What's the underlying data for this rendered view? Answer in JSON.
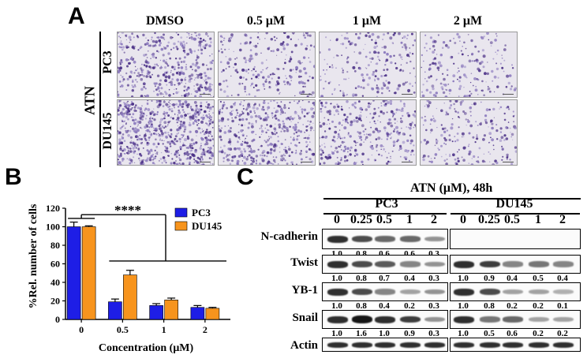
{
  "panel_a": {
    "letter": "A",
    "treatment_label": "ATN",
    "columns": [
      "DMSO",
      "0.5 μM",
      "1 μM",
      "2 μM"
    ],
    "rows": [
      "PC3",
      "DU145"
    ],
    "density": [
      [
        0.55,
        0.22,
        0.18,
        0.16
      ],
      [
        0.95,
        0.55,
        0.4,
        0.2
      ]
    ]
  },
  "panel_b": {
    "letter": "B",
    "significance": "****"
  },
  "chart_data": {
    "type": "bar",
    "categories": [
      "0",
      "0.5",
      "1",
      "2"
    ],
    "series": [
      {
        "name": "PC3",
        "values": [
          100,
          19,
          15,
          13
        ],
        "errors": [
          5,
          3,
          2,
          2
        ],
        "color": "#1e1ee6"
      },
      {
        "name": "DU145",
        "values": [
          100,
          48,
          21,
          12
        ],
        "errors": [
          1,
          5,
          2,
          1
        ],
        "color": "#f7941d"
      }
    ],
    "xlabel": "Concentration (μM)",
    "ylabel": "%Rel. number of cells",
    "ylim": [
      0,
      120
    ],
    "yticks": [
      "0",
      "20",
      "40",
      "60",
      "80",
      "100",
      "120"
    ],
    "legend_position": "top-right"
  },
  "panel_c": {
    "letter": "C",
    "title": "ATN (μM), 48h",
    "cell_lines": [
      "PC3",
      "DU145"
    ],
    "concentrations": [
      "0",
      "0.25",
      "0.5",
      "1",
      "2"
    ],
    "blots": [
      {
        "label": "N-cadherin",
        "pc3": [
          "1.0",
          "0.8",
          "0.6",
          "0.6",
          "0.3"
        ],
        "du145": []
      },
      {
        "label": "Twist",
        "pc3": [
          "1.0",
          "0.8",
          "0.7",
          "0.4",
          "0.3"
        ],
        "du145": [
          "1.0",
          "0.9",
          "0.4",
          "0.5",
          "0.4"
        ]
      },
      {
        "label": "YB-1",
        "pc3": [
          "1.0",
          "0.8",
          "0.4",
          "0.2",
          "0.3"
        ],
        "du145": [
          "1.0",
          "0.8",
          "0.2",
          "0.2",
          "0.1"
        ]
      },
      {
        "label": "Snail",
        "pc3": [
          "1.0",
          "1.6",
          "1.0",
          "0.9",
          "0.3"
        ],
        "du145": [
          "1.0",
          "0.5",
          "0.6",
          "0.2",
          "0.2"
        ]
      },
      {
        "label": "Actin",
        "pc3": [],
        "du145": []
      }
    ],
    "actin_intensity": [
      1,
      1,
      1,
      1,
      1
    ]
  }
}
